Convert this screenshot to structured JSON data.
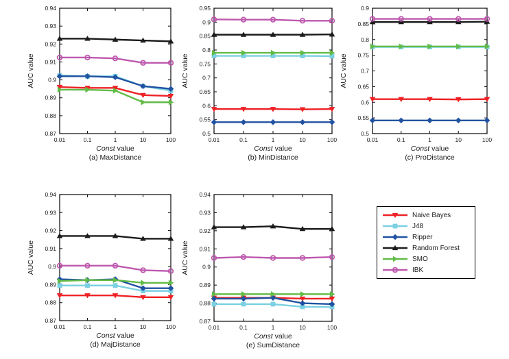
{
  "colors": {
    "naive_bayes": "#EE2125",
    "j48": "#7BD0E2",
    "ripper": "#2152A1",
    "random_forest": "#1B1B1B",
    "smo": "#62BB46",
    "ibk": "#BE58AE",
    "axis": "#1B1B1B",
    "background": "#FFFFFF"
  },
  "classifiers": [
    {
      "name": "Naive Bayes",
      "slug": "naive-bayes",
      "color": "#EE2125",
      "marker": "triangle-down"
    },
    {
      "name": "J48",
      "slug": "j48",
      "color": "#7BD0E2",
      "marker": "square"
    },
    {
      "name": "Ripper",
      "slug": "ripper",
      "color": "#2152A1",
      "marker": "diamond"
    },
    {
      "name": "Random Forest",
      "slug": "random-forest",
      "color": "#1B1B1B",
      "marker": "triangle-up"
    },
    {
      "name": "SMO",
      "slug": "smo",
      "color": "#62BB46",
      "marker": "triangle-right"
    },
    {
      "name": "IBK",
      "slug": "ibk",
      "color": "#BE58AE",
      "marker": "circle-open"
    }
  ],
  "legend": {
    "items": [
      "Naive Bayes",
      "J48",
      "Ripper",
      "Random Forest",
      "SMO",
      "IBK"
    ],
    "position": "bottom-right"
  },
  "chart_data": [
    {
      "id": "a",
      "type": "line",
      "caption": "(a) MaxDistance",
      "xlabel": {
        "italic": "Const",
        "normal": " value"
      },
      "ylabel": "AUC value",
      "x_scale": "log",
      "x_values": [
        0.01,
        0.1,
        1,
        10,
        100
      ],
      "x_tick_labels": [
        "0.01",
        "0.1",
        "1",
        "10",
        "100"
      ],
      "ylim": [
        0.87,
        0.94
      ],
      "y_tick_labels": [
        "0.87",
        "0.88",
        "0.89",
        "0.9",
        "0.91",
        "0.92",
        "0.93",
        "0.94"
      ],
      "grid": false,
      "series": {
        "Naive Bayes": [
          0.896,
          0.8955,
          0.8955,
          0.8915,
          0.891
        ],
        "J48": [
          0.9025,
          0.902,
          0.902,
          0.8965,
          0.894
        ],
        "Ripper": [
          0.902,
          0.902,
          0.9015,
          0.8965,
          0.895
        ],
        "Random Forest": [
          0.923,
          0.923,
          0.9225,
          0.922,
          0.9215
        ],
        "SMO": [
          0.8945,
          0.8945,
          0.894,
          0.8875,
          0.8875
        ],
        "IBK": [
          0.9125,
          0.9125,
          0.912,
          0.9095,
          0.9095
        ]
      }
    },
    {
      "id": "b",
      "type": "line",
      "caption": "(b) MinDistance",
      "xlabel": {
        "italic": "Const",
        "normal": " value"
      },
      "ylabel": "AUC value",
      "x_scale": "log",
      "x_values": [
        0.01,
        0.1,
        1,
        10,
        100
      ],
      "x_tick_labels": [
        "0.01",
        "0.1",
        "1",
        "10",
        "100"
      ],
      "ylim": [
        0.5,
        0.95
      ],
      "y_tick_labels": [
        "0.5",
        "0.55",
        "0.6",
        "0.65",
        "0.7",
        "0.75",
        "0.8",
        "0.85",
        "0.9",
        "0.95"
      ],
      "grid": false,
      "series": {
        "Naive Bayes": [
          0.588,
          0.588,
          0.588,
          0.587,
          0.588
        ],
        "J48": [
          0.779,
          0.779,
          0.779,
          0.779,
          0.778
        ],
        "Ripper": [
          0.541,
          0.541,
          0.541,
          0.541,
          0.541
        ],
        "Random Forest": [
          0.855,
          0.855,
          0.855,
          0.855,
          0.856
        ],
        "SMO": [
          0.79,
          0.79,
          0.79,
          0.79,
          0.79
        ],
        "IBK": [
          0.91,
          0.909,
          0.909,
          0.905,
          0.905
        ]
      }
    },
    {
      "id": "c",
      "type": "line",
      "caption": "(c) ProDistance",
      "xlabel": {
        "italic": "Const",
        "normal": " value"
      },
      "ylabel": "AUC value",
      "x_scale": "log",
      "x_values": [
        0.01,
        0.1,
        1,
        10,
        100
      ],
      "x_tick_labels": [
        "0.01",
        "0.1",
        "1",
        "10",
        "100"
      ],
      "ylim": [
        0.5,
        0.9
      ],
      "y_tick_labels": [
        "0.5",
        "0.55",
        "0.6",
        "0.65",
        "0.7",
        "0.75",
        "0.8",
        "0.85",
        "0.9"
      ],
      "grid": false,
      "series": {
        "Naive Bayes": [
          0.61,
          0.61,
          0.61,
          0.609,
          0.61
        ],
        "J48": [
          0.7765,
          0.7765,
          0.7765,
          0.7765,
          0.7765
        ],
        "Ripper": [
          0.542,
          0.542,
          0.542,
          0.542,
          0.542
        ],
        "Random Forest": [
          0.856,
          0.856,
          0.856,
          0.856,
          0.857
        ],
        "SMO": [
          0.778,
          0.778,
          0.778,
          0.778,
          0.778
        ],
        "IBK": [
          0.866,
          0.866,
          0.866,
          0.866,
          0.866
        ]
      }
    },
    {
      "id": "d",
      "type": "line",
      "caption": "(d) MajDistance",
      "xlabel": {
        "italic": "Const",
        "normal": " value"
      },
      "ylabel": "AUC value",
      "x_scale": "log",
      "x_values": [
        0.01,
        0.1,
        1,
        10,
        100
      ],
      "x_tick_labels": [
        "0.01",
        "0.1",
        "1",
        "10",
        "100"
      ],
      "ylim": [
        0.87,
        0.94
      ],
      "y_tick_labels": [
        "0.87",
        "0.88",
        "0.89",
        "0.9",
        "0.91",
        "0.92",
        "0.93",
        "0.94"
      ],
      "grid": false,
      "series": {
        "Naive Bayes": [
          0.884,
          0.884,
          0.884,
          0.883,
          0.883
        ],
        "J48": [
          0.8895,
          0.8895,
          0.8895,
          0.8865,
          0.8865
        ],
        "Ripper": [
          0.893,
          0.8925,
          0.893,
          0.888,
          0.888
        ],
        "Random Forest": [
          0.917,
          0.917,
          0.917,
          0.9155,
          0.9155
        ],
        "SMO": [
          0.892,
          0.8925,
          0.8925,
          0.891,
          0.891
        ],
        "IBK": [
          0.9005,
          0.9005,
          0.9005,
          0.898,
          0.8975
        ]
      }
    },
    {
      "id": "e",
      "type": "line",
      "caption": "(e) SumDistance",
      "xlabel": {
        "italic": "Const",
        "normal": " value"
      },
      "ylabel": "AUC value",
      "x_scale": "log",
      "x_values": [
        0.01,
        0.1,
        1,
        10,
        100
      ],
      "x_tick_labels": [
        "0.01",
        "0.1",
        "1",
        "10",
        "100"
      ],
      "ylim": [
        0.87,
        0.94
      ],
      "y_tick_labels": [
        "0.87",
        "0.88",
        "0.89",
        "0.9",
        "0.91",
        "0.92",
        "0.93",
        "0.94"
      ],
      "grid": false,
      "series": {
        "Naive Bayes": [
          0.883,
          0.883,
          0.883,
          0.8825,
          0.8825
        ],
        "J48": [
          0.8795,
          0.8795,
          0.8795,
          0.878,
          0.878
        ],
        "Ripper": [
          0.8825,
          0.8825,
          0.883,
          0.88,
          0.8795
        ],
        "Random Forest": [
          0.922,
          0.922,
          0.9225,
          0.921,
          0.921
        ],
        "SMO": [
          0.885,
          0.885,
          0.885,
          0.885,
          0.885
        ],
        "IBK": [
          0.905,
          0.9055,
          0.905,
          0.905,
          0.9055
        ]
      }
    }
  ]
}
